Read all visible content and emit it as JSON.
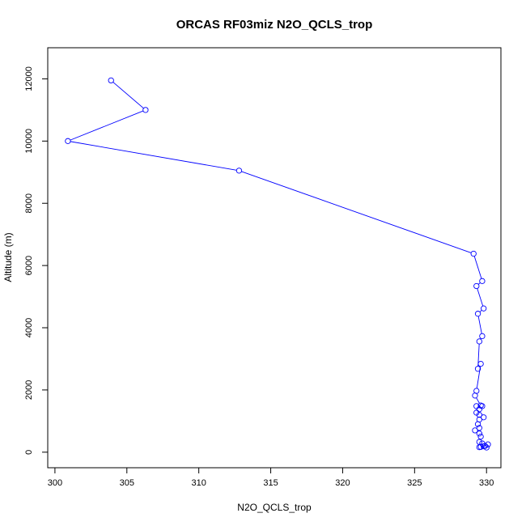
{
  "chart_data": {
    "type": "line",
    "title": "ORCAS RF03miz N2O_QCLS_trop",
    "xlabel": "N2O_QCLS_trop",
    "ylabel": "Altitude (m)",
    "xlim": [
      299.5,
      331
    ],
    "ylim": [
      -500,
      13000
    ],
    "xticks": [
      300,
      305,
      310,
      315,
      320,
      325,
      330
    ],
    "yticks": [
      0,
      2000,
      4000,
      6000,
      8000,
      10000,
      12000
    ],
    "grid": false,
    "legend": "none",
    "series": [
      {
        "color": "#0000ff",
        "marker": "open-circle",
        "points": [
          [
            303.9,
            11950
          ],
          [
            306.3,
            11000
          ],
          [
            300.9,
            10000
          ],
          [
            312.8,
            9050
          ],
          [
            329.1,
            6380
          ],
          [
            329.7,
            5500
          ],
          [
            329.3,
            5340
          ],
          [
            329.8,
            4620
          ],
          [
            329.4,
            4450
          ],
          [
            329.7,
            3730
          ],
          [
            329.5,
            3560
          ],
          [
            329.4,
            2680
          ],
          [
            329.6,
            2840
          ],
          [
            329.3,
            1970
          ],
          [
            329.2,
            1820
          ],
          [
            329.6,
            1500
          ],
          [
            329.3,
            1480
          ],
          [
            329.7,
            1480
          ],
          [
            329.5,
            1380
          ],
          [
            329.3,
            1270
          ],
          [
            329.5,
            1200
          ],
          [
            329.8,
            1120
          ],
          [
            329.5,
            1050
          ],
          [
            329.4,
            900
          ],
          [
            329.5,
            780
          ],
          [
            329.2,
            700
          ],
          [
            329.5,
            600
          ],
          [
            329.6,
            500
          ],
          [
            329.5,
            330
          ],
          [
            329.7,
            280
          ],
          [
            330.1,
            250
          ],
          [
            329.8,
            190
          ],
          [
            329.5,
            160
          ],
          [
            330.0,
            150
          ],
          [
            329.9,
            200
          ],
          [
            329.6,
            170
          ]
        ]
      }
    ]
  }
}
